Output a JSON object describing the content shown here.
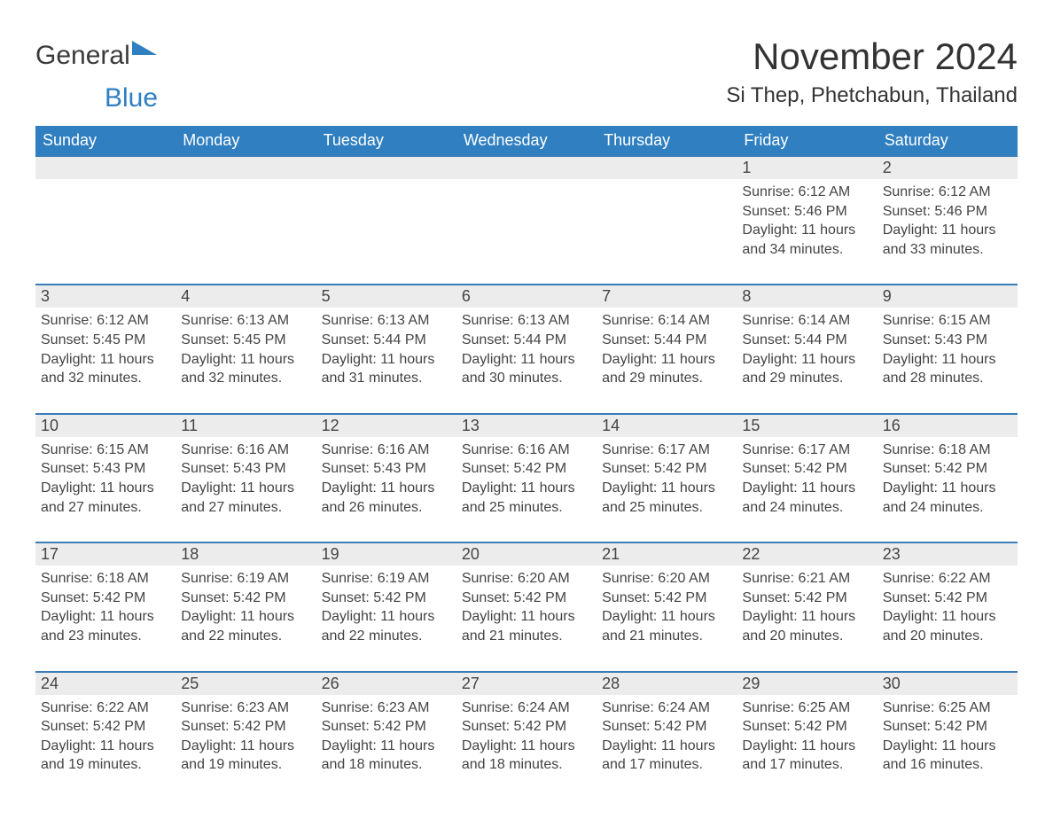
{
  "brand": {
    "part1": "General",
    "part2": "Blue"
  },
  "title": "November 2024",
  "location": "Si Thep, Phetchabun, Thailand",
  "colors": {
    "header_bg": "#2f7fc1",
    "header_text": "#ffffff",
    "row_border": "#3a7cb8",
    "daynum_bg": "#ececec",
    "text": "#444444",
    "page_bg": "#ffffff"
  },
  "fonts": {
    "title_size_pt": 32,
    "location_size_pt": 18,
    "header_size_pt": 14,
    "body_size_pt": 12
  },
  "layout": {
    "columns": 7,
    "start_day_index": 5,
    "days_in_month": 30
  },
  "day_labels": [
    "Sunday",
    "Monday",
    "Tuesday",
    "Wednesday",
    "Thursday",
    "Friday",
    "Saturday"
  ],
  "field_labels": {
    "sunrise": "Sunrise",
    "sunset": "Sunset",
    "daylight": "Daylight"
  },
  "days": [
    {
      "n": 1,
      "sunrise": "6:12 AM",
      "sunset": "5:46 PM",
      "dl_h": 11,
      "dl_m": 34
    },
    {
      "n": 2,
      "sunrise": "6:12 AM",
      "sunset": "5:46 PM",
      "dl_h": 11,
      "dl_m": 33
    },
    {
      "n": 3,
      "sunrise": "6:12 AM",
      "sunset": "5:45 PM",
      "dl_h": 11,
      "dl_m": 32
    },
    {
      "n": 4,
      "sunrise": "6:13 AM",
      "sunset": "5:45 PM",
      "dl_h": 11,
      "dl_m": 32
    },
    {
      "n": 5,
      "sunrise": "6:13 AM",
      "sunset": "5:44 PM",
      "dl_h": 11,
      "dl_m": 31
    },
    {
      "n": 6,
      "sunrise": "6:13 AM",
      "sunset": "5:44 PM",
      "dl_h": 11,
      "dl_m": 30
    },
    {
      "n": 7,
      "sunrise": "6:14 AM",
      "sunset": "5:44 PM",
      "dl_h": 11,
      "dl_m": 29
    },
    {
      "n": 8,
      "sunrise": "6:14 AM",
      "sunset": "5:44 PM",
      "dl_h": 11,
      "dl_m": 29
    },
    {
      "n": 9,
      "sunrise": "6:15 AM",
      "sunset": "5:43 PM",
      "dl_h": 11,
      "dl_m": 28
    },
    {
      "n": 10,
      "sunrise": "6:15 AM",
      "sunset": "5:43 PM",
      "dl_h": 11,
      "dl_m": 27
    },
    {
      "n": 11,
      "sunrise": "6:16 AM",
      "sunset": "5:43 PM",
      "dl_h": 11,
      "dl_m": 27
    },
    {
      "n": 12,
      "sunrise": "6:16 AM",
      "sunset": "5:43 PM",
      "dl_h": 11,
      "dl_m": 26
    },
    {
      "n": 13,
      "sunrise": "6:16 AM",
      "sunset": "5:42 PM",
      "dl_h": 11,
      "dl_m": 25
    },
    {
      "n": 14,
      "sunrise": "6:17 AM",
      "sunset": "5:42 PM",
      "dl_h": 11,
      "dl_m": 25
    },
    {
      "n": 15,
      "sunrise": "6:17 AM",
      "sunset": "5:42 PM",
      "dl_h": 11,
      "dl_m": 24
    },
    {
      "n": 16,
      "sunrise": "6:18 AM",
      "sunset": "5:42 PM",
      "dl_h": 11,
      "dl_m": 24
    },
    {
      "n": 17,
      "sunrise": "6:18 AM",
      "sunset": "5:42 PM",
      "dl_h": 11,
      "dl_m": 23
    },
    {
      "n": 18,
      "sunrise": "6:19 AM",
      "sunset": "5:42 PM",
      "dl_h": 11,
      "dl_m": 22
    },
    {
      "n": 19,
      "sunrise": "6:19 AM",
      "sunset": "5:42 PM",
      "dl_h": 11,
      "dl_m": 22
    },
    {
      "n": 20,
      "sunrise": "6:20 AM",
      "sunset": "5:42 PM",
      "dl_h": 11,
      "dl_m": 21
    },
    {
      "n": 21,
      "sunrise": "6:20 AM",
      "sunset": "5:42 PM",
      "dl_h": 11,
      "dl_m": 21
    },
    {
      "n": 22,
      "sunrise": "6:21 AM",
      "sunset": "5:42 PM",
      "dl_h": 11,
      "dl_m": 20
    },
    {
      "n": 23,
      "sunrise": "6:22 AM",
      "sunset": "5:42 PM",
      "dl_h": 11,
      "dl_m": 20
    },
    {
      "n": 24,
      "sunrise": "6:22 AM",
      "sunset": "5:42 PM",
      "dl_h": 11,
      "dl_m": 19
    },
    {
      "n": 25,
      "sunrise": "6:23 AM",
      "sunset": "5:42 PM",
      "dl_h": 11,
      "dl_m": 19
    },
    {
      "n": 26,
      "sunrise": "6:23 AM",
      "sunset": "5:42 PM",
      "dl_h": 11,
      "dl_m": 18
    },
    {
      "n": 27,
      "sunrise": "6:24 AM",
      "sunset": "5:42 PM",
      "dl_h": 11,
      "dl_m": 18
    },
    {
      "n": 28,
      "sunrise": "6:24 AM",
      "sunset": "5:42 PM",
      "dl_h": 11,
      "dl_m": 17
    },
    {
      "n": 29,
      "sunrise": "6:25 AM",
      "sunset": "5:42 PM",
      "dl_h": 11,
      "dl_m": 17
    },
    {
      "n": 30,
      "sunrise": "6:25 AM",
      "sunset": "5:42 PM",
      "dl_h": 11,
      "dl_m": 16
    }
  ]
}
